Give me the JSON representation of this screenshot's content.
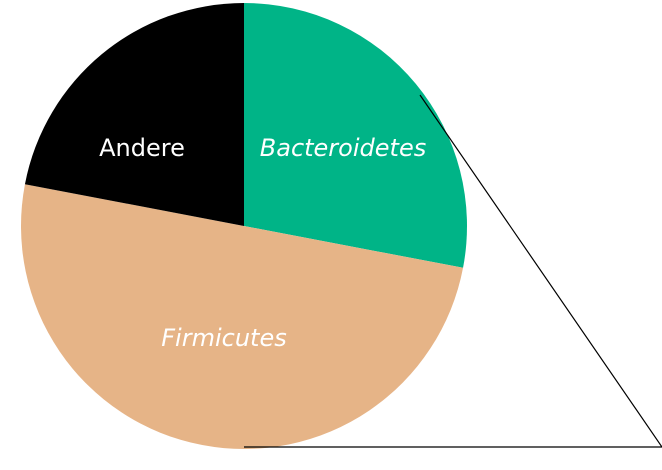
{
  "chart_data": {
    "type": "pie",
    "slices": [
      {
        "label": "Bacteroidetes",
        "value": 28,
        "color": "#00b487",
        "italic": true
      },
      {
        "label": "Firmicutes",
        "value": 50,
        "color": "#e6b487",
        "italic": true
      },
      {
        "label": "Andere",
        "value": 22,
        "color": "#000000",
        "italic": false
      }
    ],
    "start_angle_deg": 0,
    "direction": "clockwise",
    "callout": "triangle extending from the right edge of the pie"
  }
}
